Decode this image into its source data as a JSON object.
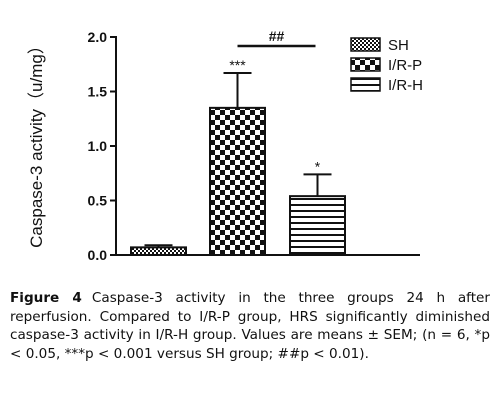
{
  "chart_data": {
    "type": "bar",
    "categories": [
      "SH",
      "I/R-P",
      "I/R-H"
    ],
    "values": [
      0.07,
      1.35,
      0.54
    ],
    "errors": [
      0.02,
      0.32,
      0.2
    ],
    "ylabel": "Caspase-3 activity（u/mg）",
    "xlabel": "",
    "ylim": [
      0,
      2.0
    ],
    "yticks": [
      "0.0",
      "0.5",
      "1.0",
      "1.5",
      "2.0"
    ],
    "ytick_values": [
      0,
      0.5,
      1.0,
      1.5,
      2.0
    ],
    "significance": [
      "",
      "***",
      "*"
    ],
    "bracket": {
      "from": 1,
      "to": 2,
      "label": "##"
    },
    "legend": [
      "SH",
      "I/R-P",
      "I/R-H"
    ],
    "legend_position": "top-right",
    "grid": false
  },
  "caption": {
    "label": "Figure 4",
    "text": "Caspase-3 activity in the three groups 24 h after reperfusion. Compared to I/R-P group, HRS significantly diminished caspase-3 activity in I/R-H group. Values are means ± SEM; (n = 6, *p < 0.05, ***p < 0.001 versus SH group; ##p < 0.01)."
  }
}
